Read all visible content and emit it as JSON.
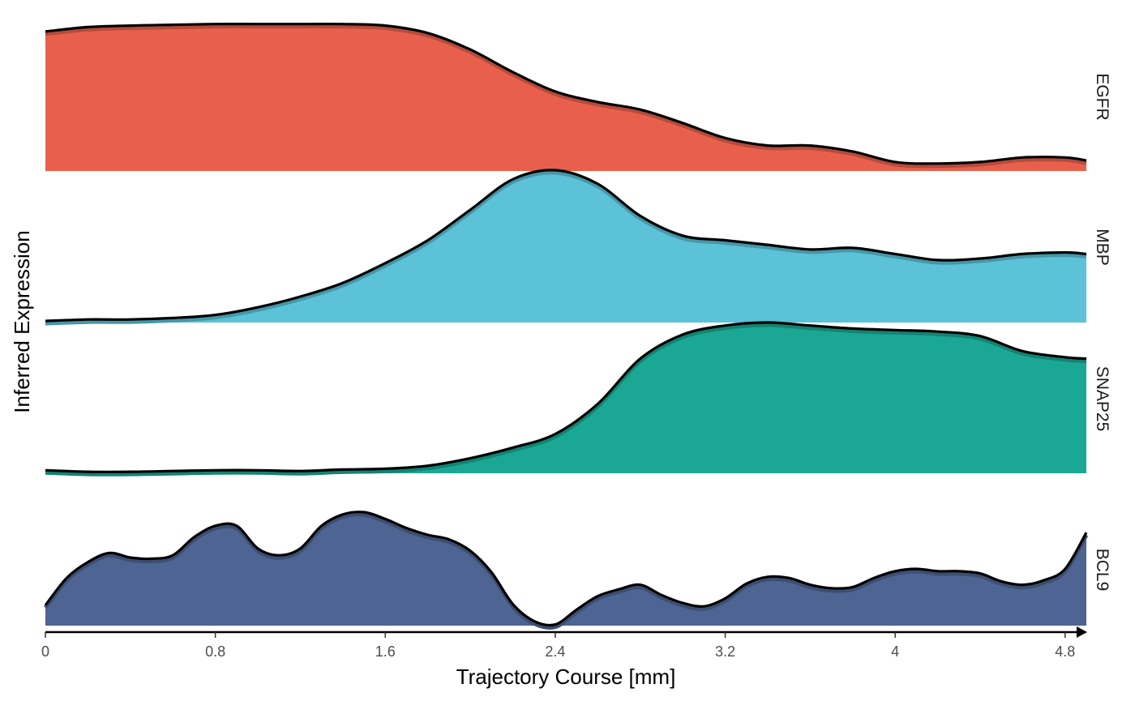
{
  "chart_data": {
    "type": "area",
    "xlabel": "Trajectory Course [mm]",
    "ylabel": "Inferred Expression",
    "xlim": [
      0,
      4.9
    ],
    "x_ticks": [
      0,
      0.8,
      1.6,
      2.4,
      3.2,
      4,
      4.8
    ],
    "x_tick_labels": [
      "0",
      "0.8",
      "1.6",
      "2.4",
      "3.2",
      "4",
      "4.8"
    ],
    "y_scale": "relative expression per panel (0 = panel baseline, 1 = panel peak)",
    "grid": false,
    "legend": "none",
    "series": [
      {
        "name": "EGFR",
        "color": "#E8604C",
        "x": [
          0,
          0.2,
          0.4,
          0.6,
          0.8,
          1.0,
          1.2,
          1.4,
          1.6,
          1.8,
          2.0,
          2.2,
          2.4,
          2.6,
          2.8,
          3.0,
          3.2,
          3.4,
          3.6,
          3.8,
          4.0,
          4.2,
          4.4,
          4.6,
          4.8,
          4.9
        ],
        "values": [
          0.93,
          0.96,
          0.97,
          0.975,
          0.98,
          0.98,
          0.98,
          0.98,
          0.97,
          0.92,
          0.81,
          0.66,
          0.53,
          0.46,
          0.41,
          0.32,
          0.22,
          0.17,
          0.17,
          0.13,
          0.06,
          0.05,
          0.06,
          0.09,
          0.09,
          0.07
        ]
      },
      {
        "name": "MBP",
        "color": "#5BC2D7",
        "x": [
          0,
          0.2,
          0.4,
          0.6,
          0.8,
          1.0,
          1.2,
          1.4,
          1.6,
          1.8,
          2.0,
          2.2,
          2.4,
          2.6,
          2.8,
          3.0,
          3.2,
          3.4,
          3.6,
          3.8,
          4.0,
          4.2,
          4.4,
          4.6,
          4.8,
          4.9
        ],
        "values": [
          0.01,
          0.02,
          0.02,
          0.03,
          0.05,
          0.1,
          0.17,
          0.26,
          0.39,
          0.54,
          0.74,
          0.94,
          1.0,
          0.91,
          0.7,
          0.57,
          0.54,
          0.51,
          0.48,
          0.49,
          0.45,
          0.41,
          0.42,
          0.45,
          0.46,
          0.45
        ]
      },
      {
        "name": "SNAP25",
        "color": "#1AA894",
        "x": [
          0,
          0.2,
          0.4,
          0.6,
          0.8,
          1.0,
          1.2,
          1.4,
          1.6,
          1.8,
          2.0,
          2.2,
          2.4,
          2.6,
          2.8,
          3.0,
          3.2,
          3.4,
          3.6,
          3.8,
          4.0,
          4.2,
          4.4,
          4.6,
          4.8,
          4.9
        ],
        "values": [
          0.02,
          0.01,
          0.01,
          0.015,
          0.02,
          0.02,
          0.015,
          0.025,
          0.03,
          0.05,
          0.1,
          0.17,
          0.26,
          0.46,
          0.76,
          0.92,
          0.98,
          1.0,
          0.98,
          0.96,
          0.95,
          0.94,
          0.91,
          0.81,
          0.77,
          0.76
        ]
      },
      {
        "name": "BCL9",
        "color": "#4E6492",
        "x": [
          0,
          0.1,
          0.2,
          0.3,
          0.4,
          0.5,
          0.6,
          0.7,
          0.8,
          0.9,
          1.0,
          1.1,
          1.2,
          1.3,
          1.4,
          1.5,
          1.6,
          1.7,
          1.8,
          1.9,
          2.0,
          2.1,
          2.2,
          2.3,
          2.4,
          2.5,
          2.6,
          2.7,
          2.8,
          2.9,
          3.0,
          3.1,
          3.2,
          3.3,
          3.4,
          3.5,
          3.6,
          3.7,
          3.8,
          3.9,
          4.0,
          4.1,
          4.2,
          4.3,
          4.4,
          4.5,
          4.6,
          4.7,
          4.8,
          4.9
        ],
        "values": [
          0.18,
          0.42,
          0.56,
          0.64,
          0.6,
          0.59,
          0.62,
          0.78,
          0.88,
          0.88,
          0.68,
          0.62,
          0.68,
          0.88,
          0.98,
          1.0,
          0.94,
          0.86,
          0.8,
          0.76,
          0.66,
          0.47,
          0.19,
          0.04,
          0.01,
          0.14,
          0.26,
          0.32,
          0.36,
          0.27,
          0.2,
          0.17,
          0.24,
          0.37,
          0.43,
          0.42,
          0.36,
          0.33,
          0.34,
          0.42,
          0.48,
          0.5,
          0.48,
          0.48,
          0.46,
          0.39,
          0.36,
          0.4,
          0.5,
          0.82
        ]
      }
    ]
  }
}
